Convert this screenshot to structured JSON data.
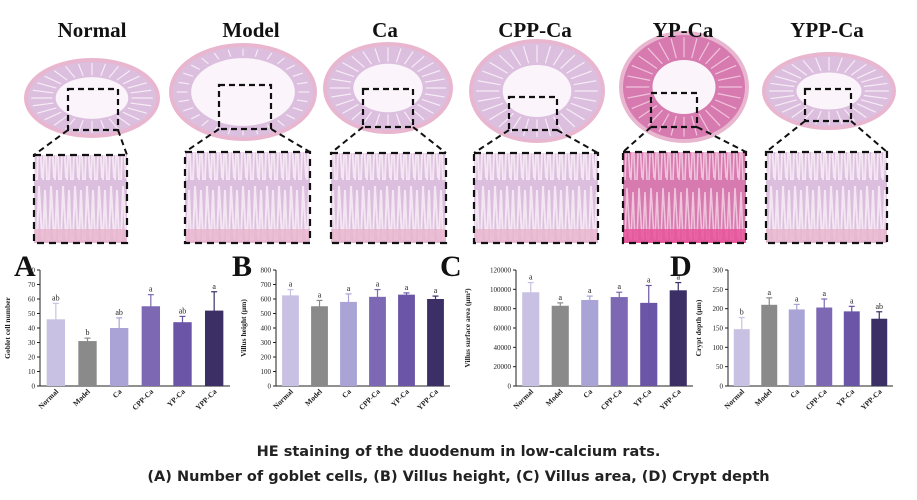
{
  "groups": [
    "Normal",
    "Model",
    "Ca",
    "CPP-Ca",
    "YP-Ca",
    "YPP-Ca"
  ],
  "colors": {
    "Normal": "#c9c1e3",
    "Model": "#8a8a8a",
    "Ca": "#a9a3d6",
    "CPP-Ca": "#7d69b3",
    "YP-Ca": "#6a55a6",
    "YPP-Ca": "#3c2f66"
  },
  "tissue_colors": {
    "normal": "#dcbfdf",
    "dense": "#d77ab0",
    "stroma": "#f4e6f2",
    "muscle": "#e9b6cf"
  },
  "caption": {
    "line1": "HE staining of the duodenum in low-calcium rats.",
    "line2": "(A) Number of goblet cells, (B) Villus height, (C) Villus area, (D) Crypt depth"
  },
  "chart_data": [
    {
      "type": "bar",
      "panel": "A",
      "categories": [
        "Normal",
        "Model",
        "Ca",
        "CPP-Ca",
        "YP-Ca",
        "YPP-Ca"
      ],
      "values": [
        46,
        31,
        40,
        55,
        44,
        52
      ],
      "errors": [
        11,
        2,
        7,
        8,
        4,
        13
      ],
      "letters": [
        "ab",
        "b",
        "ab",
        "a",
        "ab",
        "a"
      ],
      "ylabel": "Goblet cell number",
      "ylim": [
        0,
        80
      ],
      "yticks": [
        0,
        10,
        20,
        30,
        40,
        50,
        60,
        70,
        80
      ]
    },
    {
      "type": "bar",
      "panel": "B",
      "categories": [
        "Normal",
        "Model",
        "Ca",
        "CPP-Ca",
        "YP-Ca",
        "YPP-Ca"
      ],
      "values": [
        625,
        550,
        580,
        615,
        630,
        600
      ],
      "errors": [
        40,
        40,
        55,
        50,
        12,
        20
      ],
      "letters": [
        "a",
        "a",
        "a",
        "a",
        "a",
        "a"
      ],
      "ylabel": "Villus height (μm)",
      "ylim": [
        0,
        800
      ],
      "yticks": [
        0,
        100,
        200,
        300,
        400,
        500,
        600,
        700,
        800
      ]
    },
    {
      "type": "bar",
      "panel": "C",
      "categories": [
        "Normal",
        "Model",
        "Ca",
        "CPP-Ca",
        "YP-Ca",
        "YPP-Ca"
      ],
      "values": [
        97000,
        83000,
        89000,
        92000,
        86000,
        99000
      ],
      "errors": [
        10000,
        3000,
        4000,
        5000,
        18000,
        8000
      ],
      "letters": [
        "a",
        "a",
        "a",
        "a",
        "a",
        "a"
      ],
      "ylabel": "Villus surface area (μm²)",
      "ylim": [
        0,
        120000
      ],
      "yticks": [
        0,
        20000,
        40000,
        60000,
        80000,
        100000,
        120000
      ]
    },
    {
      "type": "bar",
      "panel": "D",
      "categories": [
        "Normal",
        "Model",
        "Ca",
        "CPP-Ca",
        "YP-Ca",
        "YPP-Ca"
      ],
      "values": [
        147,
        210,
        198,
        203,
        193,
        174
      ],
      "errors": [
        30,
        18,
        13,
        22,
        13,
        18
      ],
      "letters": [
        "b",
        "a",
        "a",
        "a",
        "a",
        "ab"
      ],
      "ylabel": "Crypt depth (μm)",
      "ylim": [
        0,
        300
      ],
      "yticks": [
        0,
        50,
        100,
        150,
        200,
        250,
        300
      ]
    }
  ]
}
